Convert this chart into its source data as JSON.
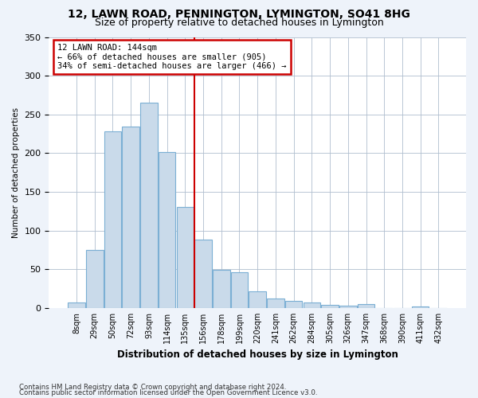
{
  "title1": "12, LAWN ROAD, PENNINGTON, LYMINGTON, SO41 8HG",
  "title2": "Size of property relative to detached houses in Lymington",
  "xlabel": "Distribution of detached houses by size in Lymington",
  "ylabel": "Number of detached properties",
  "categories": [
    "8sqm",
    "29sqm",
    "50sqm",
    "72sqm",
    "93sqm",
    "114sqm",
    "135sqm",
    "156sqm",
    "178sqm",
    "199sqm",
    "220sqm",
    "241sqm",
    "262sqm",
    "284sqm",
    "305sqm",
    "326sqm",
    "347sqm",
    "368sqm",
    "390sqm",
    "411sqm",
    "432sqm"
  ],
  "values": [
    7,
    75,
    228,
    234,
    265,
    201,
    130,
    88,
    49,
    46,
    22,
    12,
    9,
    7,
    4,
    3,
    5,
    0,
    0,
    2,
    0
  ],
  "bar_color": "#c9daea",
  "bar_edge_color": "#7bafd4",
  "annotation_text_line1": "12 LAWN ROAD: 144sqm",
  "annotation_text_line2": "← 66% of detached houses are smaller (905)",
  "annotation_text_line3": "34% of semi-detached houses are larger (466) →",
  "annotation_box_color": "#ffffff",
  "annotation_box_edge": "#cc0000",
  "vline_color": "#cc0000",
  "vline_x": 6.5,
  "ylim": [
    0,
    350
  ],
  "yticks": [
    0,
    50,
    100,
    150,
    200,
    250,
    300,
    350
  ],
  "footer1": "Contains HM Land Registry data © Crown copyright and database right 2024.",
  "footer2": "Contains public sector information licensed under the Open Government Licence v3.0.",
  "bg_color": "#eef3fa",
  "plot_bg_color": "#ffffff"
}
